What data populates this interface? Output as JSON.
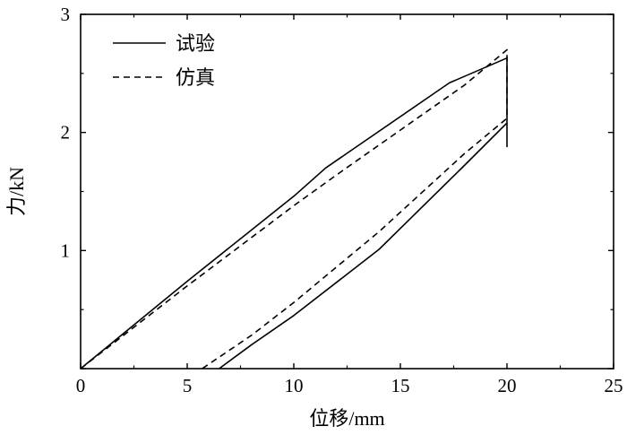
{
  "chart_data": {
    "type": "line",
    "title": "",
    "xlabel": "位移/mm",
    "ylabel": "力/kN",
    "xlim": [
      0,
      25
    ],
    "ylim": [
      0,
      3
    ],
    "xticks": [
      "0",
      "5",
      "10",
      "15",
      "20",
      "25"
    ],
    "yticks": [
      "0",
      "1",
      "2",
      "3"
    ],
    "grid": false,
    "legend_position": "top-left",
    "series": [
      {
        "name": "试验",
        "style": "solid",
        "color": "#000000",
        "points": [
          [
            0,
            0
          ],
          [
            5,
            0.74
          ],
          [
            10,
            1.46
          ],
          [
            11.5,
            1.7
          ],
          [
            17.3,
            2.42
          ],
          [
            20,
            2.63
          ],
          [
            20,
            1.88
          ],
          [
            20,
            2.08
          ],
          [
            18,
            1.72
          ],
          [
            14,
            1.01
          ],
          [
            10,
            0.45
          ],
          [
            8,
            0.2
          ],
          [
            6.5,
            0
          ]
        ]
      },
      {
        "name": "仿真",
        "style": "dashed",
        "color": "#000000",
        "points": [
          [
            0,
            0
          ],
          [
            5,
            0.7
          ],
          [
            10,
            1.38
          ],
          [
            12,
            1.64
          ],
          [
            15,
            2.02
          ],
          [
            18,
            2.4
          ],
          [
            20,
            2.7
          ],
          [
            20,
            2.12
          ],
          [
            18,
            1.82
          ],
          [
            14,
            1.16
          ],
          [
            10,
            0.56
          ],
          [
            8,
            0.28
          ],
          [
            5.7,
            0
          ]
        ]
      }
    ]
  }
}
